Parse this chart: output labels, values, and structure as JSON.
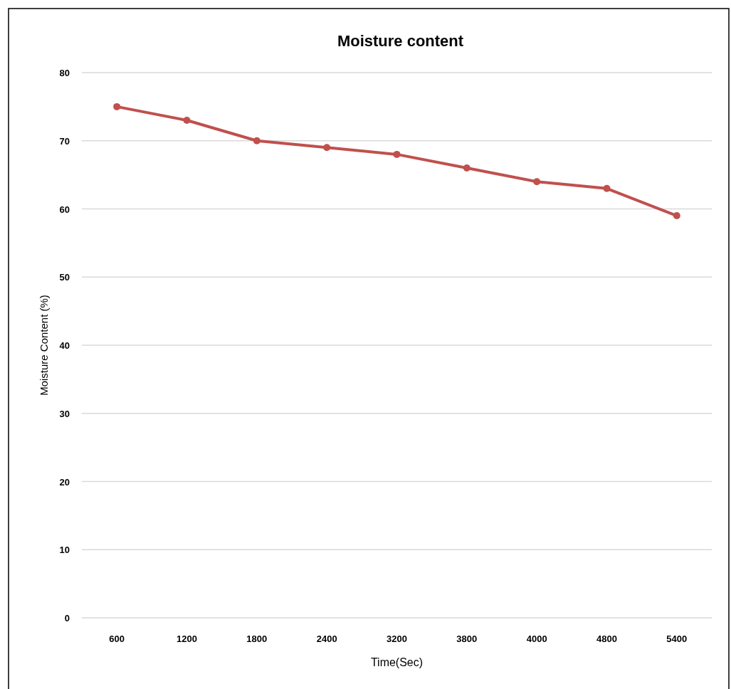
{
  "chart_data": {
    "type": "line",
    "title": "Moisture content",
    "xlabel": "Time(Sec)",
    "ylabel": "Moisture Content (%)",
    "categories": [
      "600",
      "1200",
      "1800",
      "2400",
      "3200",
      "3800",
      "4000",
      "4800",
      "5400"
    ],
    "series": [
      {
        "color": "#c0504d",
        "values": [
          75,
          73,
          70,
          69,
          68,
          66,
          64,
          63,
          59
        ]
      }
    ],
    "ylim": [
      0,
      80
    ],
    "yticks": [
      0,
      10,
      20,
      30,
      40,
      50,
      60,
      70,
      80
    ],
    "grid": "y",
    "marker": "circle",
    "line_style": "solid"
  }
}
